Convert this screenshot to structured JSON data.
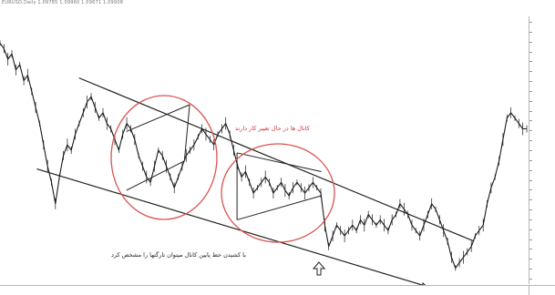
{
  "chart_window": {
    "header_text": "EURUSD,Daily 1.09785 1.09960 1.09671 1.09908",
    "accent_text_color": "#cc3333",
    "trendline_color": "#222222",
    "ellipse_color": "#d9534f",
    "price_line_color": "#1a1a1a"
  },
  "annotations": {
    "upper_note": "کانال ها در حال تغییر کار دارند",
    "lower_note": "با کشیدن خط پایین کانال میتوان تارگتها را مشخص کرد",
    "up_arrow_icon": "hollow-up-arrow",
    "right_arrow_icon": "hollow-right-arrow"
  },
  "chart_data": {
    "type": "line",
    "title": "",
    "xlabel": "",
    "ylabel": "",
    "grid": false,
    "legend": "none",
    "ylim": [
      0,
      100
    ],
    "series": [
      {
        "values": [
          90,
          88,
          84,
          86,
          80,
          82,
          76,
          78,
          72,
          66,
          60,
          52,
          44,
          38,
          30,
          40,
          48,
          52,
          50,
          56,
          60,
          64,
          68,
          70,
          66,
          62,
          64,
          60,
          58,
          54,
          50,
          56,
          60,
          58,
          54,
          48,
          44,
          40,
          38,
          44,
          50,
          48,
          44,
          40,
          36,
          40,
          44,
          48,
          50,
          52,
          55,
          58,
          56,
          54,
          52,
          56,
          58,
          60,
          56,
          50,
          44,
          40,
          42,
          38,
          34,
          36,
          38,
          40,
          38,
          34,
          36,
          38,
          35,
          33,
          36,
          38,
          36,
          34,
          36,
          38,
          36,
          34,
          22,
          14,
          18,
          22,
          20,
          18,
          20,
          22,
          20,
          24,
          22,
          26,
          24,
          22,
          24,
          22,
          20,
          24,
          26,
          30,
          28,
          26,
          22,
          20,
          18,
          22,
          26,
          30,
          28,
          24,
          20,
          16,
          10,
          6,
          8,
          10,
          12,
          14,
          18,
          20,
          22,
          30,
          36,
          40,
          46,
          54,
          62,
          64,
          62,
          60,
          58,
          58
        ]
      }
    ],
    "trend_lines": [
      {
        "from": [
          0.15,
          77
        ],
        "to": [
          0.9,
          16
        ]
      },
      {
        "from": [
          0.07,
          43
        ],
        "to": [
          0.88,
          -5
        ]
      }
    ],
    "channels": [
      {
        "upper": [
          [
            0.24,
            57
          ],
          [
            0.36,
            67
          ]
        ],
        "lower": [
          [
            0.24,
            35
          ],
          [
            0.35,
            46
          ]
        ]
      },
      {
        "upper": [
          [
            0.45,
            49
          ],
          [
            0.61,
            42
          ]
        ],
        "lower": [
          [
            0.45,
            24
          ],
          [
            0.61,
            33
          ]
        ]
      }
    ],
    "price_axis_ticks": [
      "",
      "",
      "",
      "",
      "",
      "",
      "",
      "",
      "",
      "",
      "",
      "",
      "",
      "",
      "",
      "",
      "",
      "",
      "",
      "",
      "",
      "",
      "",
      "",
      "",
      "",
      ""
    ]
  }
}
